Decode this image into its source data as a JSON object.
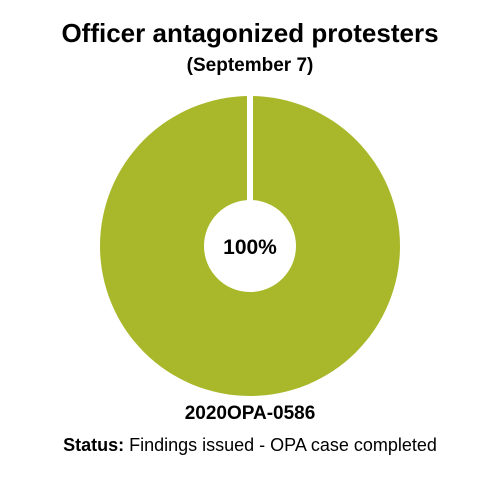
{
  "chart_data": {
    "type": "pie",
    "title": "Officer antagonized protesters",
    "subtitle": "(September 7)",
    "center_label": "100%",
    "slices": [
      {
        "value": 100,
        "color": "#a8b82a"
      }
    ],
    "colors": {
      "fill": "#a8b82a",
      "background": "#ffffff"
    }
  },
  "footer": {
    "case_id": "2020OPA-0586",
    "status_label": "Status:",
    "status_text": " Findings issued - OPA case completed"
  }
}
